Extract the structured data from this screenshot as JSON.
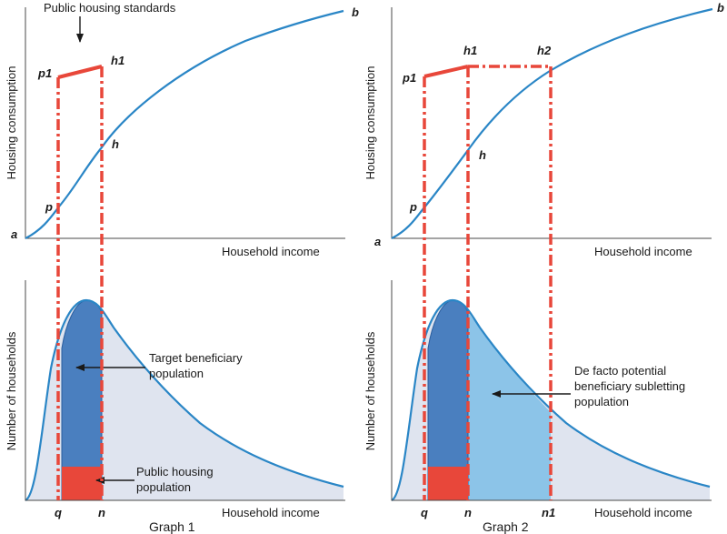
{
  "graph1": {
    "title": "Graph 1",
    "top": {
      "ylabel": "Housing consumption",
      "xlabel": "Household income",
      "annotation": "Public housing standards",
      "points": {
        "a": "a",
        "b": "b",
        "p": "p",
        "p1": "p1",
        "h": "h",
        "h1": "h1"
      }
    },
    "bottom": {
      "ylabel": "Number of households",
      "xlabel": "Household income",
      "ticks": {
        "q": "q",
        "n": "n"
      },
      "annotation_target_line1": "Target beneficiary",
      "annotation_target_line2": "population",
      "annotation_public_line1": "Public housing",
      "annotation_public_line2": "population"
    }
  },
  "graph2": {
    "title": "Graph 2",
    "top": {
      "ylabel": "Housing consumption",
      "xlabel": "Household income",
      "points": {
        "a": "a",
        "b": "b",
        "p": "p",
        "p1": "p1",
        "h": "h",
        "h1": "h1",
        "h2": "h2"
      }
    },
    "bottom": {
      "ylabel": "Number of households",
      "xlabel": "Household income",
      "ticks": {
        "q": "q",
        "n": "n",
        "n1": "n1"
      },
      "annotation_line1": "De facto potential",
      "annotation_line2": "beneficiary subletting",
      "annotation_line3": "population"
    }
  },
  "colors": {
    "curve": "#2a86c6",
    "standard_line": "#e8473a",
    "target_fill": "#4a7fbf",
    "public_fill": "#e8473a",
    "subletting_fill": "#8cc4e8",
    "population_fill": "#dfe4ef"
  }
}
